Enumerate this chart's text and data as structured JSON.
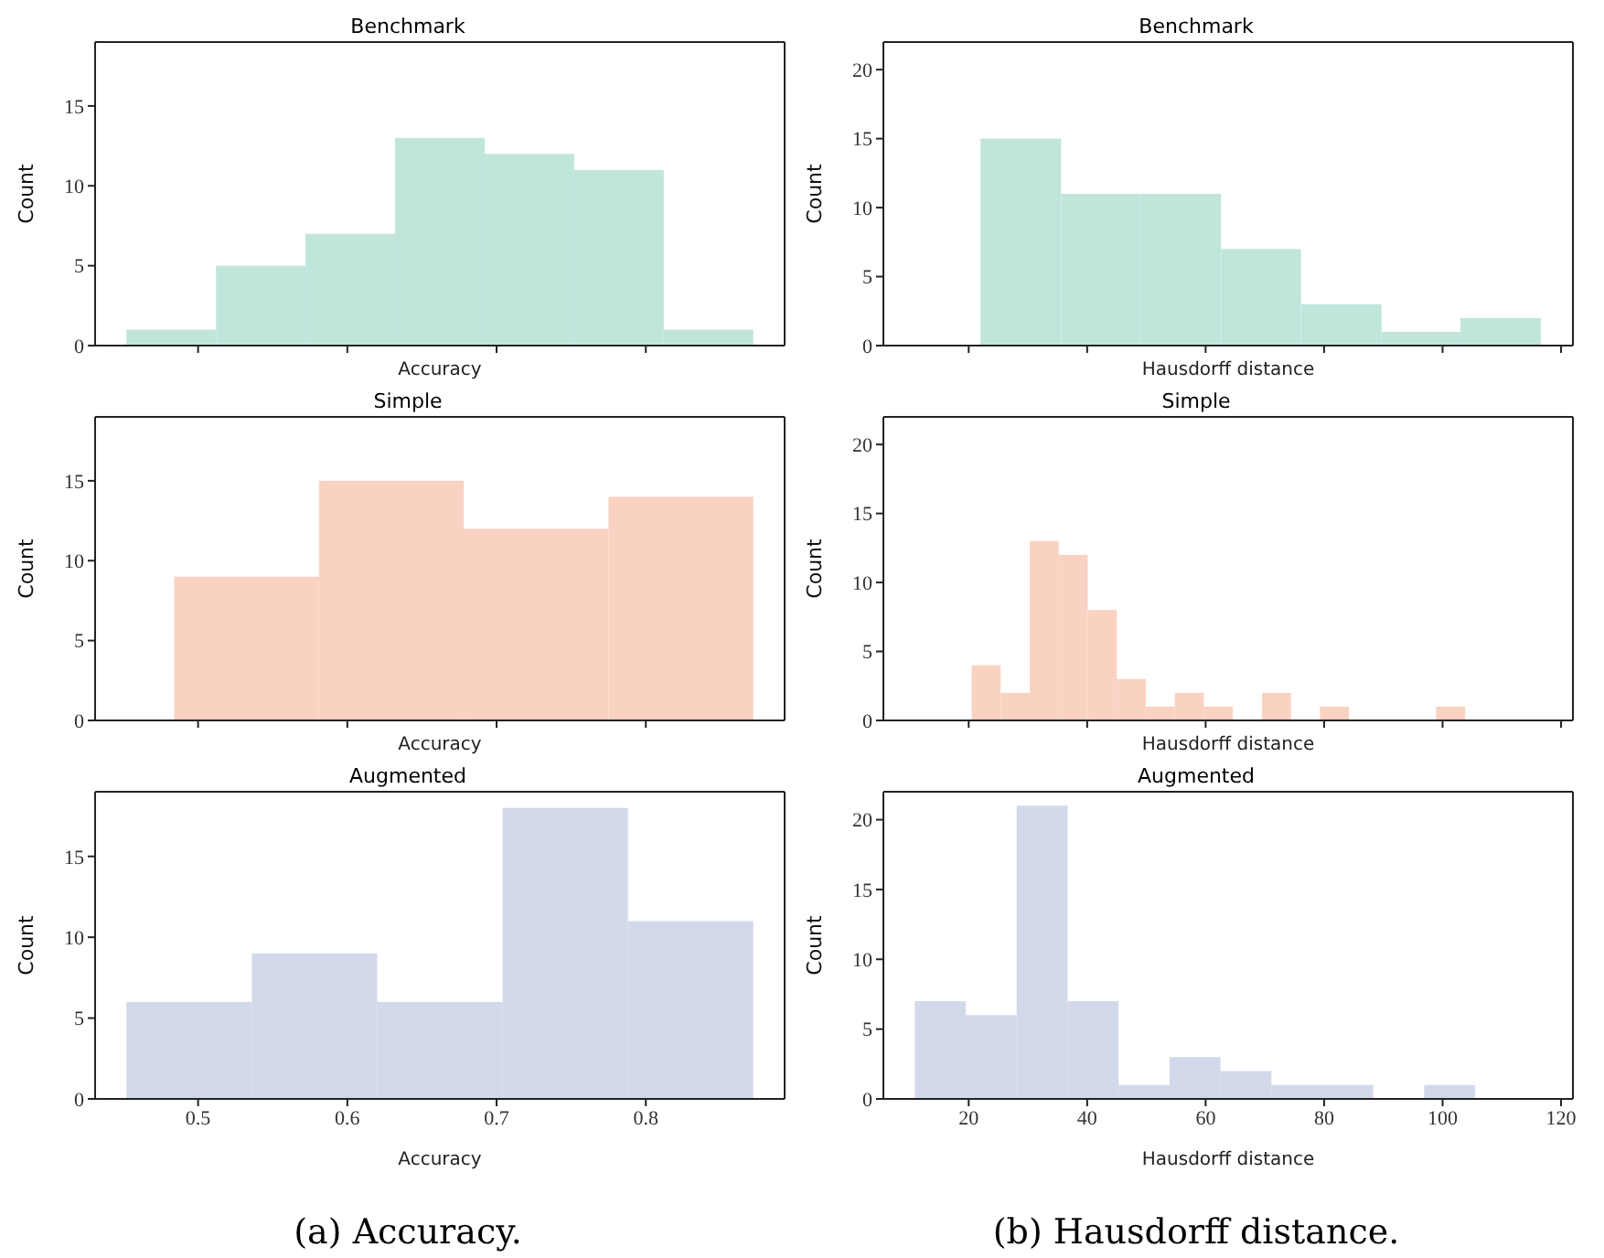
{
  "chart_data": [
    {
      "type": "histogram",
      "title": "Benchmark",
      "xlabel": "Accuracy",
      "ylabel": "Count",
      "color": "#c0e6dc",
      "bins": [
        0.452,
        0.512,
        0.572,
        0.632,
        0.692,
        0.752,
        0.812,
        0.872
      ],
      "values": [
        1,
        5,
        7,
        13,
        12,
        11,
        1
      ],
      "xlim": [
        0.431,
        0.893
      ],
      "xticks": [
        {
          "value": 0.5,
          "label": null
        },
        {
          "value": 0.6,
          "label": null
        },
        {
          "value": 0.7,
          "label": null
        },
        {
          "value": 0.8,
          "label": null
        }
      ],
      "ylim": [
        0,
        19
      ],
      "yticks": [
        0,
        5,
        10,
        15
      ],
      "tick_labels": "y",
      "grid": false
    },
    {
      "type": "histogram",
      "title": "Benchmark",
      "xlabel": "Hausdorff distance",
      "ylabel": "Count",
      "color": "#c0e6dc",
      "bins": [
        22.0,
        35.6,
        49.1,
        62.6,
        76.1,
        89.7,
        103.0,
        116.6
      ],
      "values": [
        15,
        11,
        11,
        7,
        3,
        1,
        2
      ],
      "xlim": [
        5.6,
        122
      ],
      "xticks": [
        {
          "value": 20,
          "label": null
        },
        {
          "value": 40,
          "label": null
        },
        {
          "value": 60,
          "label": null
        },
        {
          "value": 80,
          "label": null
        },
        {
          "value": 100,
          "label": null
        },
        {
          "value": 120,
          "label": null
        }
      ],
      "ylim": [
        0,
        22
      ],
      "yticks": [
        0,
        5,
        10,
        15,
        20
      ],
      "tick_labels": "y",
      "grid": false
    },
    {
      "type": "histogram",
      "title": "Simple",
      "xlabel": "Accuracy",
      "ylabel": "Count",
      "color": "#fad2c2",
      "bins": [
        0.484,
        0.581,
        0.678,
        0.775,
        0.872
      ],
      "values": [
        9,
        15,
        12,
        14
      ],
      "xlim": [
        0.431,
        0.893
      ],
      "xticks": [
        {
          "value": 0.5,
          "label": null
        },
        {
          "value": 0.6,
          "label": null
        },
        {
          "value": 0.7,
          "label": null
        },
        {
          "value": 0.8,
          "label": null
        }
      ],
      "ylim": [
        0,
        19
      ],
      "yticks": [
        0,
        5,
        10,
        15
      ],
      "tick_labels": "y",
      "grid": false
    },
    {
      "type": "histogram",
      "title": "Simple",
      "xlabel": "Hausdorff distance",
      "ylabel": "Count",
      "color": "#fad2c2",
      "bins": [
        20.5,
        25.4,
        30.3,
        35.2,
        40.1,
        45.0,
        49.9,
        54.8,
        59.7,
        64.6,
        69.5,
        74.4,
        79.3,
        84.2,
        89.1,
        94.0,
        98.9,
        103.8
      ],
      "values": [
        4,
        2,
        13,
        12,
        8,
        3,
        1,
        2,
        1,
        0,
        2,
        0,
        1,
        0,
        0,
        0,
        1
      ],
      "xlim": [
        5.6,
        122
      ],
      "xticks": [
        {
          "value": 20,
          "label": null
        },
        {
          "value": 40,
          "label": null
        },
        {
          "value": 60,
          "label": null
        },
        {
          "value": 80,
          "label": null
        },
        {
          "value": 100,
          "label": null
        },
        {
          "value": 120,
          "label": null
        }
      ],
      "ylim": [
        0,
        22
      ],
      "yticks": [
        0,
        5,
        10,
        15,
        20
      ],
      "tick_labels": "y",
      "grid": false
    },
    {
      "type": "histogram",
      "title": "Augmented",
      "xlabel": "Accuracy",
      "ylabel": "Count",
      "color": "#d2d9ea",
      "bins": [
        0.452,
        0.536,
        0.62,
        0.704,
        0.788,
        0.872
      ],
      "values": [
        6,
        9,
        6,
        18,
        11
      ],
      "xlim": [
        0.431,
        0.893
      ],
      "xticks": [
        0.5,
        0.6,
        0.7,
        0.8
      ],
      "ylim": [
        0,
        19
      ],
      "yticks": [
        0,
        5,
        10,
        15
      ],
      "grid": false,
      "annotations": [
        "(a) Accuracy."
      ]
    },
    {
      "type": "histogram",
      "title": "Augmented",
      "xlabel": "Hausdorff distance",
      "ylabel": "Count",
      "color": "#d2d9ea",
      "bins": [
        10.9,
        19.5,
        28.1,
        36.7,
        45.3,
        53.9,
        62.5,
        71.1,
        79.7,
        88.3,
        96.9,
        105.5
      ],
      "values": [
        7,
        6,
        21,
        7,
        1,
        3,
        2,
        1,
        1,
        0,
        1
      ],
      "xlim": [
        5.6,
        122
      ],
      "xticks": [
        20,
        40,
        60,
        80,
        100,
        120
      ],
      "ylim": [
        0,
        22
      ],
      "yticks": [
        0,
        5,
        10,
        15,
        20
      ],
      "grid": false,
      "annotations": [
        "(b) Hausdorff distance."
      ]
    }
  ]
}
